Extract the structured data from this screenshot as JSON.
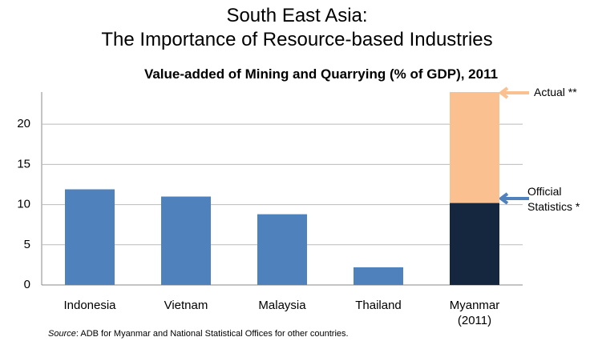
{
  "chart_data": {
    "type": "stacked_bar",
    "title": [
      "South East Asia:",
      "The Importance of Resource-based Industries"
    ],
    "subtitle": "Value-added of Mining and Quarrying (% of GDP), 2011",
    "categories": [
      "Indonesia",
      "Vietnam",
      "Malaysia",
      "Thailand",
      "Myanmar (2011)"
    ],
    "series": [
      {
        "name": "Official Statistics *",
        "color": "#4f81bd",
        "colors": [
          "#4f81bd",
          "#4f81bd",
          "#4f81bd",
          "#4f81bd",
          "#14273f"
        ],
        "values": [
          11.9,
          11.0,
          8.8,
          2.2,
          10.2
        ]
      },
      {
        "name": "Actual **",
        "color": "#fac090",
        "values": [
          null,
          null,
          null,
          null,
          13.8
        ]
      }
    ],
    "ylim": [
      0,
      24
    ],
    "yticks": [
      0,
      5,
      10,
      15,
      20
    ],
    "grid": true,
    "source_label": "Source",
    "source_text": ": ADB for Myanmar and National Statistical Offices for other countries."
  }
}
